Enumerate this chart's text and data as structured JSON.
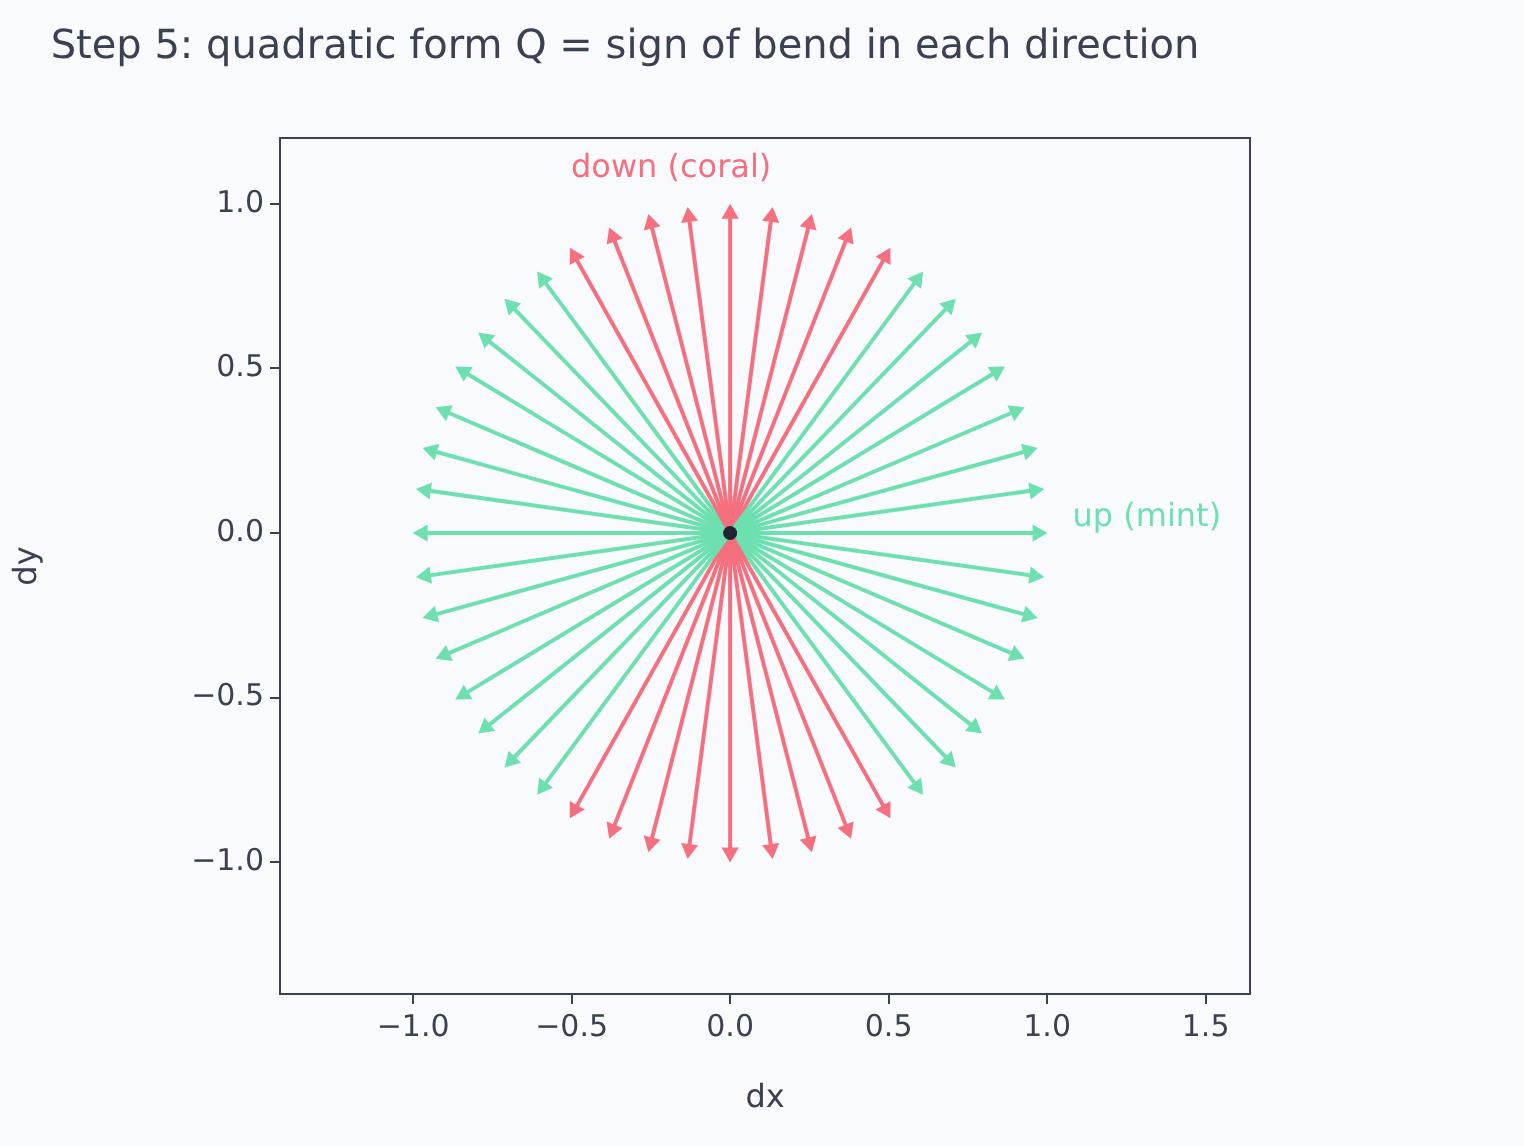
{
  "chart_data": {
    "type": "line",
    "title": "Step 5: quadratic form Q = sign of bend in each direction",
    "xlabel": "dx",
    "ylabel": "dy",
    "xlim": [
      -1.42,
      1.64
    ],
    "ylim": [
      -1.4,
      1.2
    ],
    "xticks": [
      {
        "value": -1,
        "label": "−1.0"
      },
      {
        "value": -0.5,
        "label": "−0.5"
      },
      {
        "value": 0,
        "label": "0.0"
      },
      {
        "value": 0.5,
        "label": "0.5"
      },
      {
        "value": 1,
        "label": "1.0"
      },
      {
        "value": 1.5,
        "label": "1.5"
      }
    ],
    "yticks": [
      {
        "value": -1,
        "label": "−1.0"
      },
      {
        "value": -0.5,
        "label": "−0.5"
      },
      {
        "value": 0,
        "label": "0.0"
      },
      {
        "value": 0.5,
        "label": "0.5"
      },
      {
        "value": 1,
        "label": "1.0"
      }
    ],
    "annotations": [
      "down (coral)",
      "up (mint)"
    ],
    "series": [
      {
        "type": "line",
        "color": "#6ee0b0",
        "x": [
          0,
          0.97
        ],
        "values": [
          0,
          0
        ]
      },
      {
        "type": "line",
        "color": "#6ee0b0",
        "x": [
          0,
          0.96
        ],
        "values": [
          0,
          0.13
        ]
      },
      {
        "type": "line",
        "color": "#6ee0b0",
        "x": [
          0,
          0.94
        ],
        "values": [
          0,
          0.25
        ]
      },
      {
        "type": "line",
        "color": "#6ee0b0",
        "x": [
          0,
          0.9
        ],
        "values": [
          0,
          0.37
        ]
      },
      {
        "type": "line",
        "color": "#6ee0b0",
        "x": [
          0,
          0.84
        ],
        "values": [
          0,
          0.49
        ]
      },
      {
        "type": "line",
        "color": "#6ee0b0",
        "x": [
          0,
          0.77
        ],
        "values": [
          0,
          0.59
        ]
      },
      {
        "type": "line",
        "color": "#6ee0b0",
        "x": [
          0,
          0.69
        ],
        "values": [
          0,
          0.69
        ]
      },
      {
        "type": "line",
        "color": "#6ee0b0",
        "x": [
          0,
          0.59
        ],
        "values": [
          0,
          0.77
        ]
      },
      {
        "type": "line",
        "color": "#f4707f",
        "x": [
          0,
          0.49
        ],
        "values": [
          0,
          0.84
        ]
      },
      {
        "type": "line",
        "color": "#f4707f",
        "x": [
          0,
          0.37
        ],
        "values": [
          0,
          0.9
        ]
      },
      {
        "type": "line",
        "color": "#f4707f",
        "x": [
          0,
          0.25
        ],
        "values": [
          0,
          0.94
        ]
      },
      {
        "type": "line",
        "color": "#f4707f",
        "x": [
          0,
          0.13
        ],
        "values": [
          0,
          0.96
        ]
      },
      {
        "type": "line",
        "color": "#f4707f",
        "x": [
          0,
          0
        ],
        "values": [
          0,
          0.97
        ]
      },
      {
        "type": "line",
        "color": "#f4707f",
        "x": [
          0,
          -0.13
        ],
        "values": [
          0,
          0.96
        ]
      },
      {
        "type": "line",
        "color": "#f4707f",
        "x": [
          0,
          -0.25
        ],
        "values": [
          0,
          0.94
        ]
      },
      {
        "type": "line",
        "color": "#f4707f",
        "x": [
          0,
          -0.37
        ],
        "values": [
          0,
          0.9
        ]
      },
      {
        "type": "line",
        "color": "#f4707f",
        "x": [
          0,
          -0.49
        ],
        "values": [
          0,
          0.84
        ]
      },
      {
        "type": "line",
        "color": "#6ee0b0",
        "x": [
          0,
          -0.59
        ],
        "values": [
          0,
          0.77
        ]
      },
      {
        "type": "line",
        "color": "#6ee0b0",
        "x": [
          0,
          -0.69
        ],
        "values": [
          0,
          0.69
        ]
      },
      {
        "type": "line",
        "color": "#6ee0b0",
        "x": [
          0,
          -0.77
        ],
        "values": [
          0,
          0.59
        ]
      },
      {
        "type": "line",
        "color": "#6ee0b0",
        "x": [
          0,
          -0.84
        ],
        "values": [
          0,
          0.49
        ]
      },
      {
        "type": "line",
        "color": "#6ee0b0",
        "x": [
          0,
          -0.9
        ],
        "values": [
          0,
          0.37
        ]
      },
      {
        "type": "line",
        "color": "#6ee0b0",
        "x": [
          0,
          -0.94
        ],
        "values": [
          0,
          0.25
        ]
      },
      {
        "type": "line",
        "color": "#6ee0b0",
        "x": [
          0,
          -0.96
        ],
        "values": [
          0,
          0.13
        ]
      },
      {
        "type": "line",
        "color": "#6ee0b0",
        "x": [
          0,
          -0.97
        ],
        "values": [
          0,
          0
        ]
      },
      {
        "type": "line",
        "color": "#6ee0b0",
        "x": [
          0,
          -0.96
        ],
        "values": [
          0,
          -0.13
        ]
      },
      {
        "type": "line",
        "color": "#6ee0b0",
        "x": [
          0,
          -0.94
        ],
        "values": [
          0,
          -0.25
        ]
      },
      {
        "type": "line",
        "color": "#6ee0b0",
        "x": [
          0,
          -0.9
        ],
        "values": [
          0,
          -0.37
        ]
      },
      {
        "type": "line",
        "color": "#6ee0b0",
        "x": [
          0,
          -0.84
        ],
        "values": [
          0,
          -0.49
        ]
      },
      {
        "type": "line",
        "color": "#6ee0b0",
        "x": [
          0,
          -0.77
        ],
        "values": [
          0,
          -0.59
        ]
      },
      {
        "type": "line",
        "color": "#6ee0b0",
        "x": [
          0,
          -0.69
        ],
        "values": [
          0,
          -0.69
        ]
      },
      {
        "type": "line",
        "color": "#6ee0b0",
        "x": [
          0,
          -0.59
        ],
        "values": [
          0,
          -0.77
        ]
      },
      {
        "type": "line",
        "color": "#f4707f",
        "x": [
          0,
          -0.49
        ],
        "values": [
          0,
          -0.84
        ]
      },
      {
        "type": "line",
        "color": "#f4707f",
        "x": [
          0,
          -0.37
        ],
        "values": [
          0,
          -0.9
        ]
      },
      {
        "type": "line",
        "color": "#f4707f",
        "x": [
          0,
          -0.25
        ],
        "values": [
          0,
          -0.94
        ]
      },
      {
        "type": "line",
        "color": "#f4707f",
        "x": [
          0,
          -0.13
        ],
        "values": [
          0,
          -0.96
        ]
      },
      {
        "type": "line",
        "color": "#f4707f",
        "x": [
          0,
          0
        ],
        "values": [
          0,
          -0.97
        ]
      },
      {
        "type": "line",
        "color": "#f4707f",
        "x": [
          0,
          0.13
        ],
        "values": [
          0,
          -0.96
        ]
      },
      {
        "type": "line",
        "color": "#f4707f",
        "x": [
          0,
          0.25
        ],
        "values": [
          0,
          -0.94
        ]
      },
      {
        "type": "line",
        "color": "#f4707f",
        "x": [
          0,
          0.37
        ],
        "values": [
          0,
          -0.9
        ]
      },
      {
        "type": "line",
        "color": "#f4707f",
        "x": [
          0,
          0.49
        ],
        "values": [
          0,
          -0.84
        ]
      },
      {
        "type": "line",
        "color": "#6ee0b0",
        "x": [
          0,
          0.59
        ],
        "values": [
          0,
          -0.77
        ]
      },
      {
        "type": "line",
        "color": "#6ee0b0",
        "x": [
          0,
          0.69
        ],
        "values": [
          0,
          -0.69
        ]
      },
      {
        "type": "line",
        "color": "#6ee0b0",
        "x": [
          0,
          0.77
        ],
        "values": [
          0,
          -0.59
        ]
      },
      {
        "type": "line",
        "color": "#6ee0b0",
        "x": [
          0,
          0.84
        ],
        "values": [
          0,
          -0.49
        ]
      },
      {
        "type": "line",
        "color": "#6ee0b0",
        "x": [
          0,
          0.9
        ],
        "values": [
          0,
          -0.37
        ]
      },
      {
        "type": "line",
        "color": "#6ee0b0",
        "x": [
          0,
          0.94
        ],
        "values": [
          0,
          -0.25
        ]
      },
      {
        "type": "line",
        "color": "#6ee0b0",
        "x": [
          0,
          0.96
        ],
        "values": [
          0,
          -0.13
        ]
      },
      {
        "type": "scatter",
        "color": "#1f2430",
        "x": [
          0
        ],
        "values": [
          0
        ]
      }
    ]
  }
}
